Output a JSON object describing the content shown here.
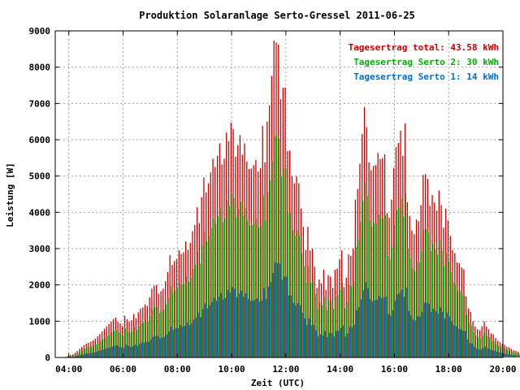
{
  "chart_data": {
    "type": "bar",
    "title": "Produktion Solaranlage Serto-Gressel 2011-06-25",
    "xlabel": "Zeit (UTC)",
    "ylabel": "Leistung [W]",
    "ylim": [
      0,
      9000
    ],
    "xlim": [
      "03:30",
      "20:00"
    ],
    "yticks": [
      0,
      1000,
      2000,
      3000,
      4000,
      5000,
      6000,
      7000,
      8000,
      9000
    ],
    "xticks": [
      "04:00",
      "06:00",
      "08:00",
      "10:00",
      "12:00",
      "14:00",
      "16:00",
      "18:00",
      "20:00"
    ],
    "grid": true,
    "legend_position": "top-right",
    "interval_minutes": 5,
    "start_time": "03:50",
    "legend": [
      {
        "key": "total",
        "label": "Tagesertrag total: 43.58 kWh",
        "color": "#cc0000"
      },
      {
        "key": "serto2",
        "label": "Tagesertrag Serto 2: 30 kWh",
        "color": "#00b000"
      },
      {
        "key": "serto1",
        "label": "Tagesertrag Serto 1: 14 kWh",
        "color": "#0070c8"
      }
    ],
    "series": [
      {
        "name": "Tagesertrag total: 43.58 kWh",
        "color": "#cc0000",
        "values": [
          10,
          20,
          50,
          70,
          90,
          130,
          180,
          240,
          290,
          340,
          380,
          410,
          440,
          470,
          520,
          580,
          650,
          720,
          790,
          860,
          920,
          990,
          1060,
          1100,
          980,
          940,
          870,
          1150,
          1050,
          980,
          1030,
          1200,
          1080,
          1240,
          1350,
          1380,
          1460,
          1420,
          1660,
          1900,
          1980,
          2000,
          1760,
          1830,
          1900,
          2100,
          2350,
          2820,
          2550,
          2660,
          2710,
          2950,
          2850,
          2900,
          3200,
          2970,
          3160,
          3480,
          3650,
          4140,
          3700,
          4420,
          4960,
          4550,
          4800,
          5100,
          5480,
          5250,
          5560,
          5900,
          5320,
          5480,
          6200,
          5960,
          6470,
          6290,
          5530,
          5850,
          6130,
          5590,
          5900,
          5400,
          5190,
          5210,
          5300,
          5450,
          5120,
          5220,
          6380,
          5380,
          6500,
          6950,
          7760,
          8730,
          8680,
          8620,
          7120,
          7430,
          7440,
          5690,
          5700,
          5000,
          4800,
          5000,
          4800,
          4100,
          3600,
          2960,
          3600,
          2950,
          3000,
          2500,
          1920,
          2150,
          2040,
          2420,
          1860,
          2270,
          2230,
          1920,
          2420,
          2450,
          2700,
          2950,
          1940,
          2200,
          2840,
          2800,
          3000,
          4350,
          4640,
          5340,
          6160,
          6900,
          6350,
          5380,
          5160,
          5280,
          5300,
          5640,
          5470,
          5490,
          5600,
          3980,
          3850,
          4350,
          5230,
          5800,
          5910,
          6250,
          5560,
          6450,
          4280,
          3900,
          3500,
          3400,
          3800,
          3750,
          4200,
          5030,
          5050,
          4920,
          4180,
          4480,
          4270,
          4050,
          4600,
          4200,
          3580,
          4100,
          3780,
          3350,
          2960,
          2880,
          2620,
          2600,
          2480,
          2430,
          1680,
          1350,
          1260,
          1000,
          850,
          780,
          750,
          860,
          990,
          850,
          780,
          660,
          640,
          540,
          460,
          420,
          380,
          350,
          300,
          280,
          240,
          200,
          180,
          160,
          130,
          100,
          80,
          60,
          40,
          30,
          20,
          10
        ]
      },
      {
        "name": "Tagesertrag Serto 2: 30 kWh",
        "color": "#00b000",
        "values": [
          7,
          14,
          35,
          50,
          65,
          90,
          125,
          170,
          200,
          240,
          270,
          290,
          310,
          330,
          360,
          400,
          450,
          500,
          550,
          600,
          640,
          690,
          740,
          770,
          690,
          660,
          610,
          800,
          730,
          690,
          720,
          840,
          760,
          870,
          940,
          970,
          1020,
          990,
          1160,
          1330,
          1390,
          1400,
          1230,
          1280,
          1330,
          1470,
          1640,
          1970,
          1790,
          1860,
          1900,
          2060,
          2000,
          2030,
          2240,
          2080,
          2210,
          2440,
          2560,
          2900,
          2590,
          3090,
          3470,
          3190,
          3360,
          3570,
          3840,
          3680,
          3890,
          4130,
          3720,
          3840,
          4340,
          4170,
          4530,
          4400,
          3870,
          4100,
          4290,
          3910,
          4130,
          3780,
          3630,
          3650,
          3710,
          3820,
          3580,
          3650,
          4470,
          3770,
          4550,
          4870,
          5430,
          6110,
          6080,
          6030,
          4980,
          5200,
          5210,
          3980,
          3990,
          3500,
          3360,
          3500,
          3360,
          2870,
          2520,
          2070,
          2520,
          2070,
          2100,
          1750,
          1340,
          1510,
          1430,
          1690,
          1300,
          1590,
          1560,
          1340,
          1690,
          1720,
          1890,
          2070,
          1360,
          1540,
          1990,
          1960,
          2100,
          3050,
          3250,
          3740,
          4310,
          4830,
          4450,
          3770,
          3610,
          3700,
          3710,
          3950,
          3830,
          3840,
          3920,
          2790,
          2700,
          3050,
          3660,
          4060,
          4140,
          4380,
          3890,
          4520,
          3000,
          2730,
          2450,
          2380,
          2660,
          2630,
          2940,
          3520,
          3540,
          3440,
          2930,
          3140,
          2990,
          2840,
          3220,
          2940,
          2510,
          2870,
          2650,
          2350,
          2070,
          2020,
          1830,
          1820,
          1740,
          1700,
          1180,
          950,
          880,
          700,
          600,
          550,
          530,
          600,
          690,
          600,
          550,
          460,
          450,
          380,
          320,
          290,
          270,
          250,
          210,
          200,
          170,
          140,
          130,
          110,
          90,
          70,
          56,
          42,
          28,
          21,
          14,
          7
        ]
      },
      {
        "name": "Tagesertrag Serto 1: 14 kWh",
        "color": "#0070c8",
        "values": [
          3,
          6,
          15,
          20,
          25,
          40,
          55,
          70,
          90,
          100,
          110,
          120,
          130,
          140,
          160,
          180,
          200,
          220,
          240,
          260,
          280,
          300,
          320,
          330,
          290,
          280,
          260,
          350,
          320,
          290,
          310,
          360,
          320,
          370,
          410,
          410,
          440,
          430,
          500,
          570,
          590,
          600,
          530,
          550,
          570,
          630,
          710,
          850,
          760,
          800,
          810,
          890,
          850,
          870,
          960,
          890,
          950,
          1040,
          1100,
          1240,
          1110,
          1330,
          1490,
          1360,
          1440,
          1530,
          1640,
          1570,
          1670,
          1770,
          1600,
          1640,
          1860,
          1790,
          1940,
          1890,
          1660,
          1760,
          1840,
          1680,
          1770,
          1620,
          1560,
          1560,
          1590,
          1630,
          1540,
          1570,
          1910,
          1610,
          1950,
          2080,
          2330,
          2620,
          2600,
          2590,
          2140,
          2230,
          2230,
          1710,
          1710,
          1500,
          1440,
          1500,
          1440,
          1230,
          1080,
          890,
          1080,
          890,
          900,
          750,
          580,
          640,
          610,
          730,
          560,
          680,
          670,
          580,
          730,
          730,
          810,
          880,
          580,
          660,
          850,
          840,
          900,
          1300,
          1390,
          1600,
          1850,
          2070,
          1900,
          1610,
          1550,
          1580,
          1590,
          1690,
          1640,
          1650,
          1680,
          1190,
          1150,
          1300,
          1570,
          1740,
          1770,
          1870,
          1670,
          1930,
          1280,
          1170,
          1050,
          1020,
          1140,
          1120,
          1260,
          1510,
          1510,
          1480,
          1250,
          1340,
          1280,
          1210,
          1380,
          1260,
          1070,
          1230,
          1130,
          1000,
          890,
          860,
          790,
          780,
          740,
          730,
          500,
          400,
          380,
          300,
          250,
          230,
          220,
          260,
          300,
          250,
          230,
          200,
          190,
          160,
          140,
          130,
          110,
          100,
          90,
          80,
          70,
          60,
          50,
          50,
          40,
          30,
          24,
          18,
          12,
          9,
          6,
          3
        ]
      }
    ]
  }
}
